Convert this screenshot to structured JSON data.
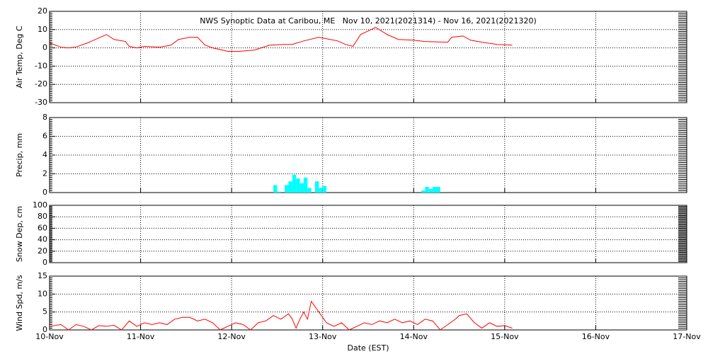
{
  "chart_data": [
    {
      "type": "line",
      "title": "NWS Synoptic Data at Caribou, ME   Nov 10, 2021(2021314) - Nov 16, 2021(2021320)",
      "ylabel": "Air Temp, Deg C",
      "color": "#ff0000",
      "grid": true,
      "ylim": [
        -30,
        20
      ],
      "yticks": [
        -30,
        -20,
        -10,
        0,
        10,
        20
      ],
      "xlim": [
        0,
        168
      ],
      "xticks": [
        0,
        24,
        48,
        72,
        96,
        120,
        144,
        168
      ],
      "x": [
        0,
        3,
        5,
        7,
        10,
        15,
        17,
        20,
        21,
        23,
        25,
        29,
        32,
        34,
        37,
        39,
        41,
        43,
        47,
        50,
        54,
        58,
        62,
        64,
        67,
        71,
        74,
        76,
        78,
        80,
        82,
        86,
        89,
        92,
        96,
        99,
        105,
        106,
        109,
        111,
        114,
        118,
        122
      ],
      "values": [
        2.7,
        0.4,
        0,
        0.5,
        2.7,
        7.3,
        4.6,
        3.5,
        0.8,
        0,
        0.8,
        0.4,
        1.5,
        4.6,
        5.8,
        5.8,
        1.5,
        0,
        -1.9,
        -1.9,
        -1.2,
        1.5,
        1.9,
        1.9,
        3.8,
        5.8,
        4.6,
        3.8,
        1.9,
        0.8,
        7.3,
        11.2,
        7.3,
        4.6,
        4.2,
        3.5,
        3.1,
        5.8,
        6.5,
        4.2,
        3.1,
        1.9,
        1.5
      ]
    },
    {
      "type": "bar",
      "ylabel": "Precip, mm",
      "color": "#00ffff",
      "grid": true,
      "ylim": [
        0,
        8
      ],
      "yticks": [
        0,
        2,
        4,
        6,
        8
      ],
      "xlim": [
        0,
        168
      ],
      "xticks": [
        0,
        24,
        48,
        72,
        96,
        120,
        144,
        168
      ],
      "x": [
        59,
        60,
        62,
        63,
        64,
        65,
        66,
        67,
        68,
        70,
        71,
        72,
        98,
        99,
        100,
        101,
        102
      ],
      "values": [
        0.8,
        0.1,
        0.8,
        1.2,
        1.9,
        1.5,
        1,
        1.6,
        0.5,
        1.2,
        0.5,
        0.7,
        0.2,
        0.6,
        0.4,
        0.6,
        0.6
      ]
    },
    {
      "type": "line",
      "ylabel": "Snow Dep, cm",
      "color": "#ff0000",
      "grid": true,
      "ylim": [
        0,
        100
      ],
      "yticks": [
        0,
        20,
        40,
        60,
        80,
        100
      ],
      "xlim": [
        0,
        168
      ],
      "xticks": [
        0,
        24,
        48,
        72,
        96,
        120,
        144,
        168
      ],
      "x": [],
      "values": []
    },
    {
      "type": "line",
      "ylabel": "Wind Spd, m/s",
      "xlabel": "Date (EST)",
      "color": "#ff0000",
      "grid": true,
      "ylim": [
        0,
        15
      ],
      "yticks": [
        0,
        5,
        10,
        15
      ],
      "xlim": [
        0,
        168
      ],
      "xticks": [
        {
          "value": 0,
          "label": "10-Nov"
        },
        {
          "value": 24,
          "label": "11-Nov"
        },
        {
          "value": 48,
          "label": "12-Nov"
        },
        {
          "value": 72,
          "label": "13-Nov"
        },
        {
          "value": 96,
          "label": "14-Nov"
        },
        {
          "value": 120,
          "label": "15-Nov"
        },
        {
          "value": 144,
          "label": "16-Nov"
        },
        {
          "value": 168,
          "label": "17-Nov"
        }
      ],
      "x": [
        0,
        3,
        5,
        7,
        9,
        11,
        13,
        15,
        17,
        19,
        21,
        23,
        25,
        27,
        29,
        31,
        33,
        35,
        37,
        39,
        41,
        43,
        45,
        47,
        49,
        51,
        53,
        55,
        57,
        59,
        61,
        63,
        64,
        65,
        66,
        67,
        68,
        69,
        71,
        73,
        75,
        77,
        79,
        81,
        83,
        85,
        87,
        89,
        91,
        93,
        95,
        97,
        99,
        101,
        103,
        105,
        107,
        108,
        110,
        112,
        114,
        116,
        118,
        120,
        122
      ],
      "values": [
        1,
        1.5,
        0,
        1.5,
        1,
        0,
        1.2,
        1,
        1.3,
        0,
        2.5,
        1,
        2,
        1.5,
        2,
        1.5,
        3,
        3.5,
        3.5,
        2.5,
        3,
        2,
        0,
        1,
        2,
        1.5,
        0,
        2,
        2.5,
        4,
        3,
        4.5,
        3,
        0.5,
        3,
        5,
        3,
        8,
        5,
        2,
        1,
        2,
        0,
        1,
        2,
        1.5,
        2.5,
        2,
        3,
        2,
        2.5,
        1.5,
        3,
        2.5,
        0,
        1.5,
        3,
        4,
        4.5,
        2,
        0.5,
        2,
        1,
        1.2,
        0.5
      ]
    }
  ]
}
